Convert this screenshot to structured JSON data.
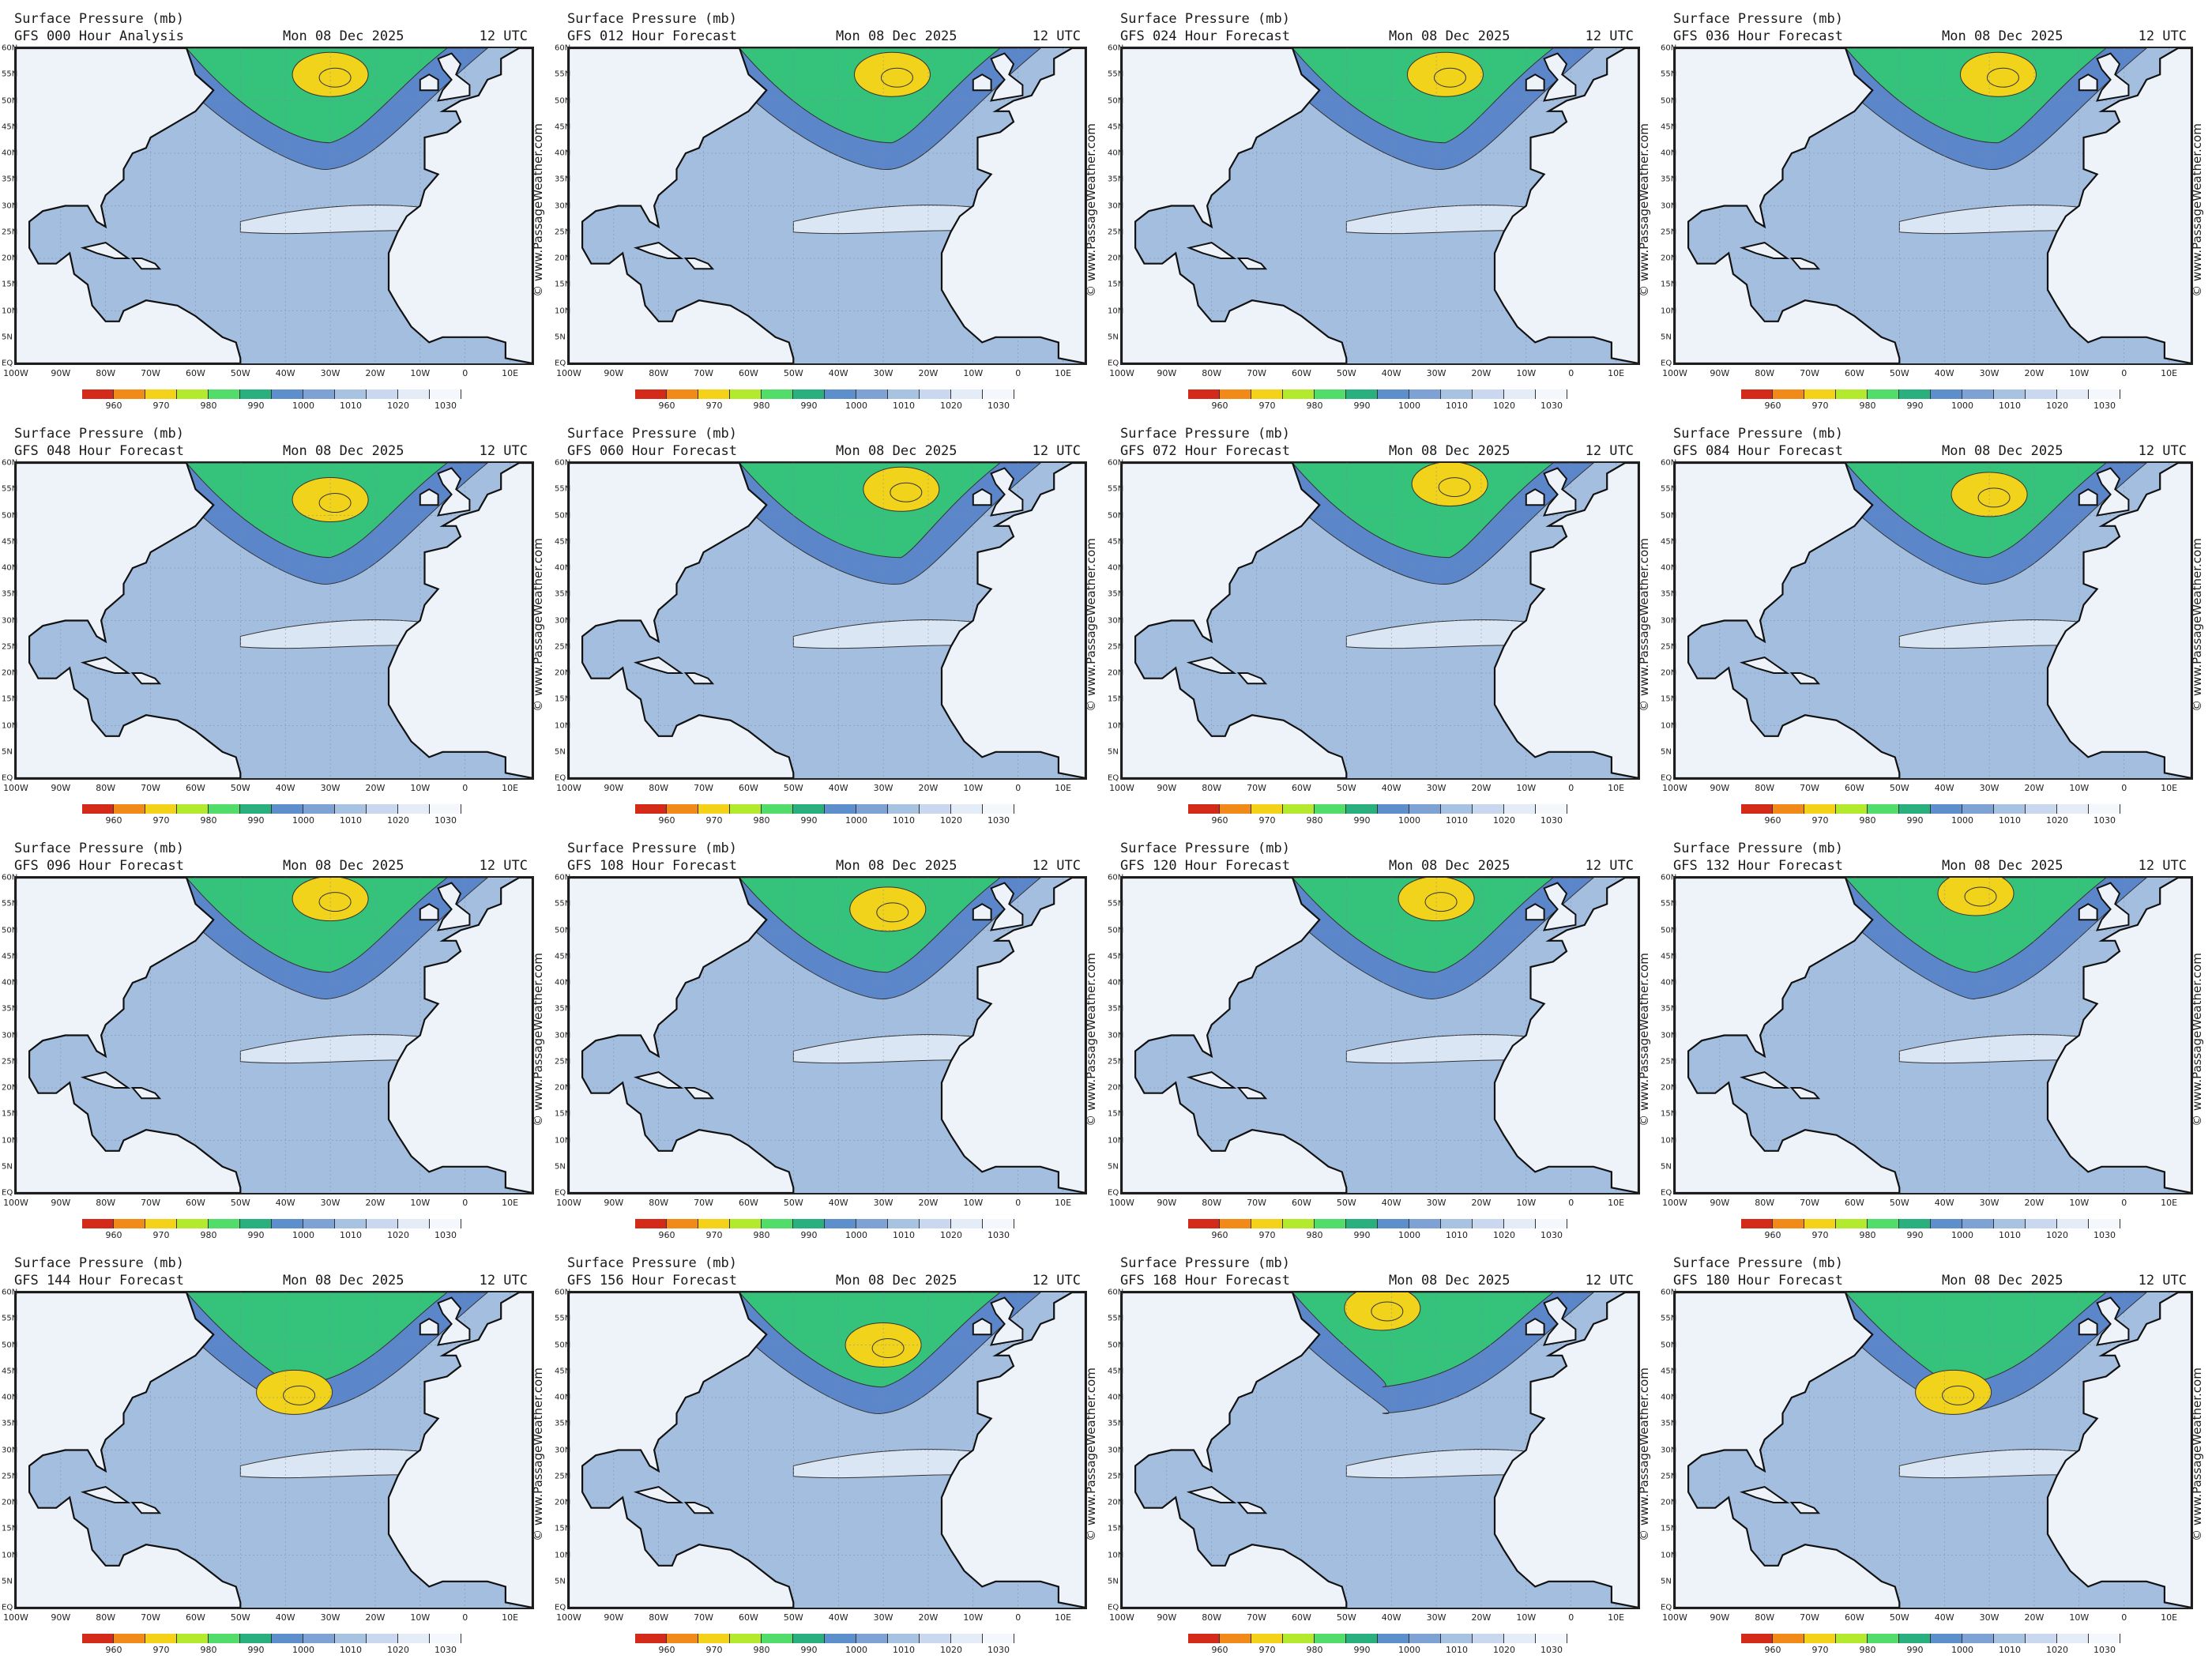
{
  "panel_title": "Surface Pressure (mb)",
  "panel_date": "Mon 08 Dec 2025",
  "panel_time": "12 UTC",
  "credit": "© www.PassageWeather.com",
  "panels": [
    {
      "subtitle": "GFS 000 Hour Analysis",
      "low_center": [
        30,
        55
      ]
    },
    {
      "subtitle": "GFS 012 Hour Forecast",
      "low_center": [
        28,
        55
      ]
    },
    {
      "subtitle": "GFS 024 Hour Forecast",
      "low_center": [
        28,
        55
      ]
    },
    {
      "subtitle": "GFS 036 Hour Forecast",
      "low_center": [
        28,
        55
      ]
    },
    {
      "subtitle": "GFS 048 Hour Forecast",
      "low_center": [
        30,
        53
      ]
    },
    {
      "subtitle": "GFS 060 Hour Forecast",
      "low_center": [
        26,
        55
      ]
    },
    {
      "subtitle": "GFS 072 Hour Forecast",
      "low_center": [
        27,
        56
      ]
    },
    {
      "subtitle": "GFS 084 Hour Forecast",
      "low_center": [
        30,
        54
      ]
    },
    {
      "subtitle": "GFS 096 Hour Forecast",
      "low_center": [
        30,
        56
      ]
    },
    {
      "subtitle": "GFS 108 Hour Forecast",
      "low_center": [
        29,
        54
      ]
    },
    {
      "subtitle": "GFS 120 Hour Forecast",
      "low_center": [
        30,
        56
      ]
    },
    {
      "subtitle": "GFS 132 Hour Forecast",
      "low_center": [
        33,
        57
      ]
    },
    {
      "subtitle": "GFS 144 Hour Forecast",
      "low_center": [
        38,
        41
      ]
    },
    {
      "subtitle": "GFS 156 Hour Forecast",
      "low_center": [
        30,
        50
      ]
    },
    {
      "subtitle": "GFS 168 Hour Forecast",
      "low_center": [
        42,
        57
      ]
    },
    {
      "subtitle": "GFS 180 Hour Forecast",
      "low_center": [
        38,
        41
      ]
    }
  ],
  "x_ticks": [
    "100W",
    "90W",
    "80W",
    "70W",
    "60W",
    "50W",
    "40W",
    "30W",
    "20W",
    "10W",
    "0",
    "10E"
  ],
  "y_ticks": [
    "60N",
    "55N",
    "50N",
    "45N",
    "40N",
    "35N",
    "30N",
    "25N",
    "20N",
    "15N",
    "10N",
    "5N",
    "EQ"
  ],
  "legend": {
    "values": [
      "960",
      "970",
      "980",
      "990",
      "1000",
      "1010",
      "1020",
      "1030"
    ],
    "colors": [
      "#d42a1a",
      "#f28a1a",
      "#f5d21a",
      "#b4ea2e",
      "#52dd6b",
      "#2ab07e",
      "#5d8fcc",
      "#7ea2d4",
      "#a8c2e2",
      "#c9d8ee",
      "#e3ecf7",
      "#f4f8fc"
    ]
  },
  "colors": {
    "ocean": "#a4bee0",
    "land": "#eef2f9",
    "green": "#35c27a",
    "deep_blue": "#5b86c9",
    "yellow": "#f2d31b"
  }
}
